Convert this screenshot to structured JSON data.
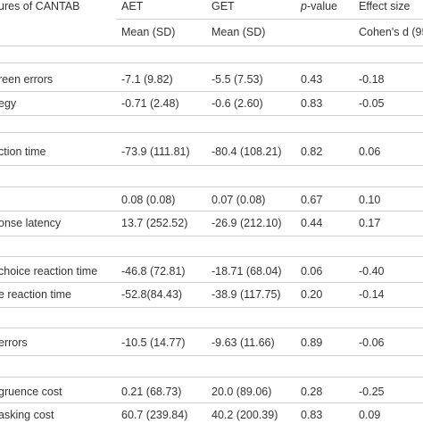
{
  "header": {
    "measures": "ures of CANTAB",
    "aet": "AET",
    "get": "GET",
    "pvalue_italic": "p",
    "pvalue_rest": "-value",
    "effect": "Effect size"
  },
  "subheader": {
    "aet": "Mean (SD)",
    "get": "Mean (SD)",
    "effect": "Cohen's d (95"
  },
  "rows": [
    {
      "label": "reen errors",
      "aet": "-7.1 (9.82)",
      "get": "-5.5 (7.53)",
      "p": "0.43",
      "d": "-0.18"
    },
    {
      "label": "egy",
      "aet": "-0.71 (2.48)",
      "get": "-0.6 (2.60)",
      "p": "0.83",
      "d": "-0.05"
    },
    {
      "label": "ction time",
      "aet": "-73.9 (111.81)",
      "get": "-80.4 (108.21)",
      "p": "0.82",
      "d": "0.06"
    },
    {
      "label": "",
      "aet": "0.08 (0.08)",
      "get": "0.07 (0.08)",
      "p": "0.67",
      "d": "0.10"
    },
    {
      "label": "onse latency",
      "aet": "13.7 (252.52)",
      "get": "-26.9 (212.10)",
      "p": "0.44",
      "d": "0.17"
    },
    {
      "label": "choice reaction time",
      "aet": "-46.8 (72.81)",
      "get": "-18.71 (68.04)",
      "p": "0.06",
      "d": "-0.40"
    },
    {
      "label": "e reaction time",
      "aet": "-52.8(84.43)",
      "get": "-38.9 (117.75)",
      "p": "0.20",
      "d": "-0.14"
    },
    {
      "label": "errors",
      "aet": "-10.5 (14.77)",
      "get": "-9.63 (11.66)",
      "p": "0.89",
      "d": "-0.06"
    },
    {
      "label": "gruence cost",
      "aet": "0.21 (68.73)",
      "get": "20.0 (89.06)",
      "p": "0.28",
      "d": "-0.25"
    },
    {
      "label": "asking cost",
      "aet": "60.7 (239.84)",
      "get": "40.2 (200.39)",
      "p": "0.83",
      "d": "0.09"
    }
  ]
}
